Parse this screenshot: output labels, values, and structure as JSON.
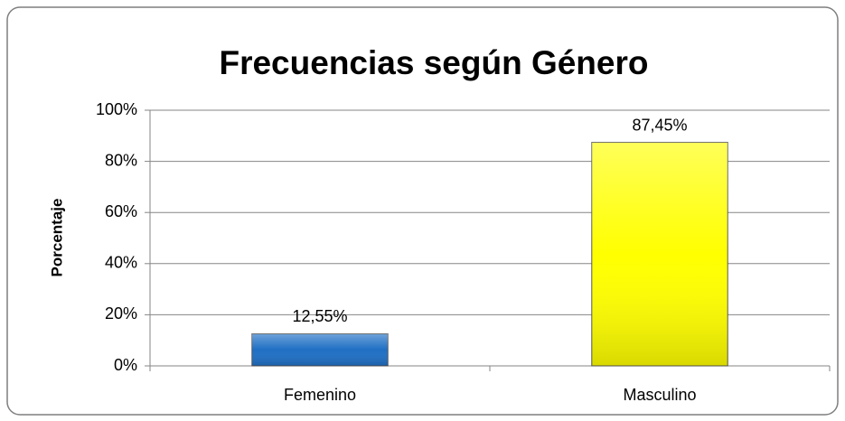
{
  "chart_data": {
    "type": "bar",
    "title": "Frecuencias según Género",
    "y_label": "Porcentaje",
    "categories": [
      "Femenino",
      "Masculino"
    ],
    "values": [
      12.55,
      87.45
    ],
    "value_labels": [
      "12,55%",
      "87,45%"
    ],
    "colors": [
      "#1f6fc4",
      "#ffff00"
    ],
    "ylim": [
      0,
      100
    ],
    "yticks": [
      {
        "value": 0,
        "label": "0%"
      },
      {
        "value": 20,
        "label": "20%"
      },
      {
        "value": 40,
        "label": "40%"
      },
      {
        "value": 60,
        "label": "60%"
      },
      {
        "value": 80,
        "label": "80%"
      },
      {
        "value": 100,
        "label": "100%"
      }
    ],
    "grid": true
  }
}
